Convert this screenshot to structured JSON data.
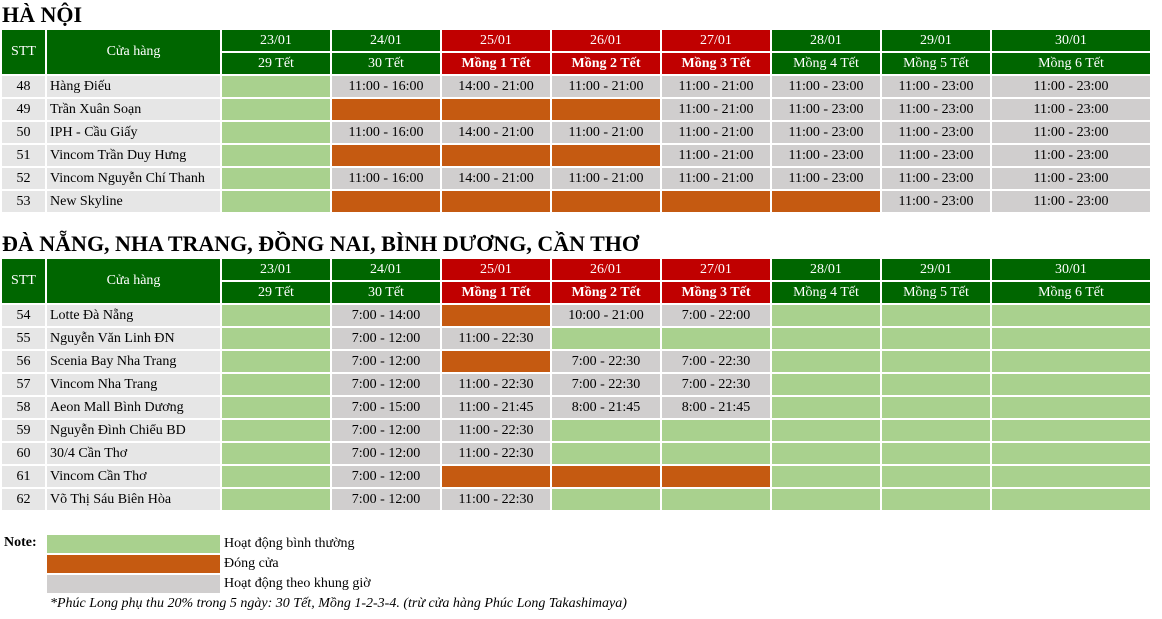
{
  "colors": {
    "header_green": "#006600",
    "header_red": "#c00000",
    "open_normal": "#a9d18e",
    "closed": "#c55a11",
    "limited_hours": "#d0cece"
  },
  "sections": [
    {
      "title": "HÀ NỘI",
      "col_stt": "STT",
      "col_store": "Cửa hàng",
      "dates": [
        "23/01",
        "24/01",
        "25/01",
        "26/01",
        "27/01",
        "28/01",
        "29/01",
        "30/01"
      ],
      "days": [
        "29 Tết",
        "30 Tết",
        "Mồng 1 Tết",
        "Mồng 2 Tết",
        "Mồng 3 Tết",
        "Mồng 4 Tết",
        "Mồng 5 Tết",
        "Mồng 6 Tết"
      ],
      "rows": [
        {
          "stt": "48",
          "store": "Hàng Điếu",
          "cells": [
            {
              "status": "green",
              "text": ""
            },
            {
              "status": "gray",
              "text": "11:00 - 16:00"
            },
            {
              "status": "gray",
              "text": "14:00 - 21:00"
            },
            {
              "status": "gray",
              "text": "11:00 - 21:00"
            },
            {
              "status": "gray",
              "text": "11:00 - 21:00"
            },
            {
              "status": "gray",
              "text": "11:00 - 23:00"
            },
            {
              "status": "gray",
              "text": "11:00 - 23:00"
            },
            {
              "status": "gray",
              "text": "11:00 - 23:00"
            }
          ]
        },
        {
          "stt": "49",
          "store": "Trần Xuân Soạn",
          "cells": [
            {
              "status": "green",
              "text": ""
            },
            {
              "status": "orange",
              "text": ""
            },
            {
              "status": "orange",
              "text": ""
            },
            {
              "status": "orange",
              "text": ""
            },
            {
              "status": "gray",
              "text": "11:00 - 21:00"
            },
            {
              "status": "gray",
              "text": "11:00 - 23:00"
            },
            {
              "status": "gray",
              "text": "11:00 - 23:00"
            },
            {
              "status": "gray",
              "text": "11:00 - 23:00"
            }
          ]
        },
        {
          "stt": "50",
          "store": "IPH - Cầu Giấy",
          "cells": [
            {
              "status": "green",
              "text": ""
            },
            {
              "status": "gray",
              "text": "11:00 - 16:00"
            },
            {
              "status": "gray",
              "text": "14:00 - 21:00"
            },
            {
              "status": "gray",
              "text": "11:00 - 21:00"
            },
            {
              "status": "gray",
              "text": "11:00 - 21:00"
            },
            {
              "status": "gray",
              "text": "11:00 - 23:00"
            },
            {
              "status": "gray",
              "text": "11:00 - 23:00"
            },
            {
              "status": "gray",
              "text": "11:00 - 23:00"
            }
          ]
        },
        {
          "stt": "51",
          "store": "Vincom Trần Duy Hưng",
          "cells": [
            {
              "status": "green",
              "text": ""
            },
            {
              "status": "orange",
              "text": ""
            },
            {
              "status": "orange",
              "text": ""
            },
            {
              "status": "orange",
              "text": ""
            },
            {
              "status": "gray",
              "text": "11:00 - 21:00"
            },
            {
              "status": "gray",
              "text": "11:00 - 23:00"
            },
            {
              "status": "gray",
              "text": "11:00 - 23:00"
            },
            {
              "status": "gray",
              "text": "11:00 - 23:00"
            }
          ]
        },
        {
          "stt": "52",
          "store": "Vincom Nguyễn Chí Thanh",
          "cells": [
            {
              "status": "green",
              "text": ""
            },
            {
              "status": "gray",
              "text": "11:00 - 16:00"
            },
            {
              "status": "gray",
              "text": "14:00 - 21:00"
            },
            {
              "status": "gray",
              "text": "11:00 - 21:00"
            },
            {
              "status": "gray",
              "text": "11:00 - 21:00"
            },
            {
              "status": "gray",
              "text": "11:00 - 23:00"
            },
            {
              "status": "gray",
              "text": "11:00 - 23:00"
            },
            {
              "status": "gray",
              "text": "11:00 - 23:00"
            }
          ]
        },
        {
          "stt": "53",
          "store": "New Skyline",
          "cells": [
            {
              "status": "green",
              "text": ""
            },
            {
              "status": "orange",
              "text": ""
            },
            {
              "status": "orange",
              "text": ""
            },
            {
              "status": "orange",
              "text": ""
            },
            {
              "status": "orange",
              "text": ""
            },
            {
              "status": "orange",
              "text": ""
            },
            {
              "status": "gray",
              "text": "11:00 - 23:00"
            },
            {
              "status": "gray",
              "text": "11:00 - 23:00"
            }
          ]
        }
      ]
    },
    {
      "title": "ĐÀ NẴNG, NHA TRANG, ĐỒNG NAI, BÌNH DƯƠNG, CẦN THƠ",
      "col_stt": "STT",
      "col_store": "Cửa hàng",
      "dates": [
        "23/01",
        "24/01",
        "25/01",
        "26/01",
        "27/01",
        "28/01",
        "29/01",
        "30/01"
      ],
      "days": [
        "29 Tết",
        "30 Tết",
        "Mồng 1 Tết",
        "Mồng 2 Tết",
        "Mồng 3 Tết",
        "Mồng 4 Tết",
        "Mồng 5 Tết",
        "Mồng 6 Tết"
      ],
      "rows": [
        {
          "stt": "54",
          "store": "Lotte Đà Nẵng",
          "cells": [
            {
              "status": "green",
              "text": ""
            },
            {
              "status": "gray",
              "text": "7:00 - 14:00"
            },
            {
              "status": "orange",
              "text": ""
            },
            {
              "status": "gray",
              "text": "10:00 - 21:00"
            },
            {
              "status": "gray",
              "text": "7:00 - 22:00"
            },
            {
              "status": "green",
              "text": ""
            },
            {
              "status": "green",
              "text": ""
            },
            {
              "status": "green",
              "text": ""
            }
          ]
        },
        {
          "stt": "55",
          "store": "Nguyễn Văn Linh ĐN",
          "cells": [
            {
              "status": "green",
              "text": ""
            },
            {
              "status": "gray",
              "text": "7:00 - 12:00"
            },
            {
              "status": "gray",
              "text": "11:00 - 22:30"
            },
            {
              "status": "green",
              "text": ""
            },
            {
              "status": "green",
              "text": ""
            },
            {
              "status": "green",
              "text": ""
            },
            {
              "status": "green",
              "text": ""
            },
            {
              "status": "green",
              "text": ""
            }
          ]
        },
        {
          "stt": "56",
          "store": "Scenia Bay Nha Trang",
          "cells": [
            {
              "status": "green",
              "text": ""
            },
            {
              "status": "gray",
              "text": "7:00 - 12:00"
            },
            {
              "status": "orange",
              "text": ""
            },
            {
              "status": "gray",
              "text": "7:00 - 22:30"
            },
            {
              "status": "gray",
              "text": "7:00 - 22:30"
            },
            {
              "status": "green",
              "text": ""
            },
            {
              "status": "green",
              "text": ""
            },
            {
              "status": "green",
              "text": ""
            }
          ]
        },
        {
          "stt": "57",
          "store": "Vincom Nha Trang",
          "cells": [
            {
              "status": "green",
              "text": ""
            },
            {
              "status": "gray",
              "text": "7:00 - 12:00"
            },
            {
              "status": "gray",
              "text": "11:00 - 22:30"
            },
            {
              "status": "gray",
              "text": "7:00 - 22:30"
            },
            {
              "status": "gray",
              "text": "7:00 - 22:30"
            },
            {
              "status": "green",
              "text": ""
            },
            {
              "status": "green",
              "text": ""
            },
            {
              "status": "green",
              "text": ""
            }
          ]
        },
        {
          "stt": "58",
          "store": "Aeon Mall Bình Dương",
          "cells": [
            {
              "status": "green",
              "text": ""
            },
            {
              "status": "gray",
              "text": "7:00 - 15:00"
            },
            {
              "status": "gray",
              "text": "11:00 - 21:45"
            },
            {
              "status": "gray",
              "text": "8:00 - 21:45"
            },
            {
              "status": "gray",
              "text": "8:00 - 21:45"
            },
            {
              "status": "green",
              "text": ""
            },
            {
              "status": "green",
              "text": ""
            },
            {
              "status": "green",
              "text": ""
            }
          ]
        },
        {
          "stt": "59",
          "store": "Nguyễn Đình Chiểu BD",
          "cells": [
            {
              "status": "green",
              "text": ""
            },
            {
              "status": "gray",
              "text": "7:00 - 12:00"
            },
            {
              "status": "gray",
              "text": "11:00 - 22:30"
            },
            {
              "status": "green",
              "text": ""
            },
            {
              "status": "green",
              "text": ""
            },
            {
              "status": "green",
              "text": ""
            },
            {
              "status": "green",
              "text": ""
            },
            {
              "status": "green",
              "text": ""
            }
          ]
        },
        {
          "stt": "60",
          "store": "30/4 Cần Thơ",
          "cells": [
            {
              "status": "green",
              "text": ""
            },
            {
              "status": "gray",
              "text": "7:00 - 12:00"
            },
            {
              "status": "gray",
              "text": "11:00 - 22:30"
            },
            {
              "status": "green",
              "text": ""
            },
            {
              "status": "green",
              "text": ""
            },
            {
              "status": "green",
              "text": ""
            },
            {
              "status": "green",
              "text": ""
            },
            {
              "status": "green",
              "text": ""
            }
          ]
        },
        {
          "stt": "61",
          "store": "Vincom Cần Thơ",
          "cells": [
            {
              "status": "green",
              "text": ""
            },
            {
              "status": "gray",
              "text": "7:00 - 12:00"
            },
            {
              "status": "orange",
              "text": ""
            },
            {
              "status": "orange",
              "text": ""
            },
            {
              "status": "orange",
              "text": ""
            },
            {
              "status": "green",
              "text": ""
            },
            {
              "status": "green",
              "text": ""
            },
            {
              "status": "green",
              "text": ""
            }
          ]
        },
        {
          "stt": "62",
          "store": "Võ Thị Sáu Biên Hòa",
          "cells": [
            {
              "status": "green",
              "text": ""
            },
            {
              "status": "gray",
              "text": "7:00 - 12:00"
            },
            {
              "status": "gray",
              "text": "11:00 - 22:30"
            },
            {
              "status": "green",
              "text": ""
            },
            {
              "status": "green",
              "text": ""
            },
            {
              "status": "green",
              "text": ""
            },
            {
              "status": "green",
              "text": ""
            },
            {
              "status": "green",
              "text": ""
            }
          ]
        }
      ]
    }
  ],
  "note": {
    "label": "Note:",
    "legend": [
      {
        "status": "green",
        "text": "Hoạt động bình thường"
      },
      {
        "status": "orange",
        "text": "Đóng cửa"
      },
      {
        "status": "gray",
        "text": "Hoạt động theo khung giờ"
      }
    ],
    "footnote": "*Phúc Long phụ thu 20% trong 5 ngày: 30 Tết, Mồng 1-2-3-4. (trừ cửa hàng Phúc Long Takashimaya)"
  }
}
